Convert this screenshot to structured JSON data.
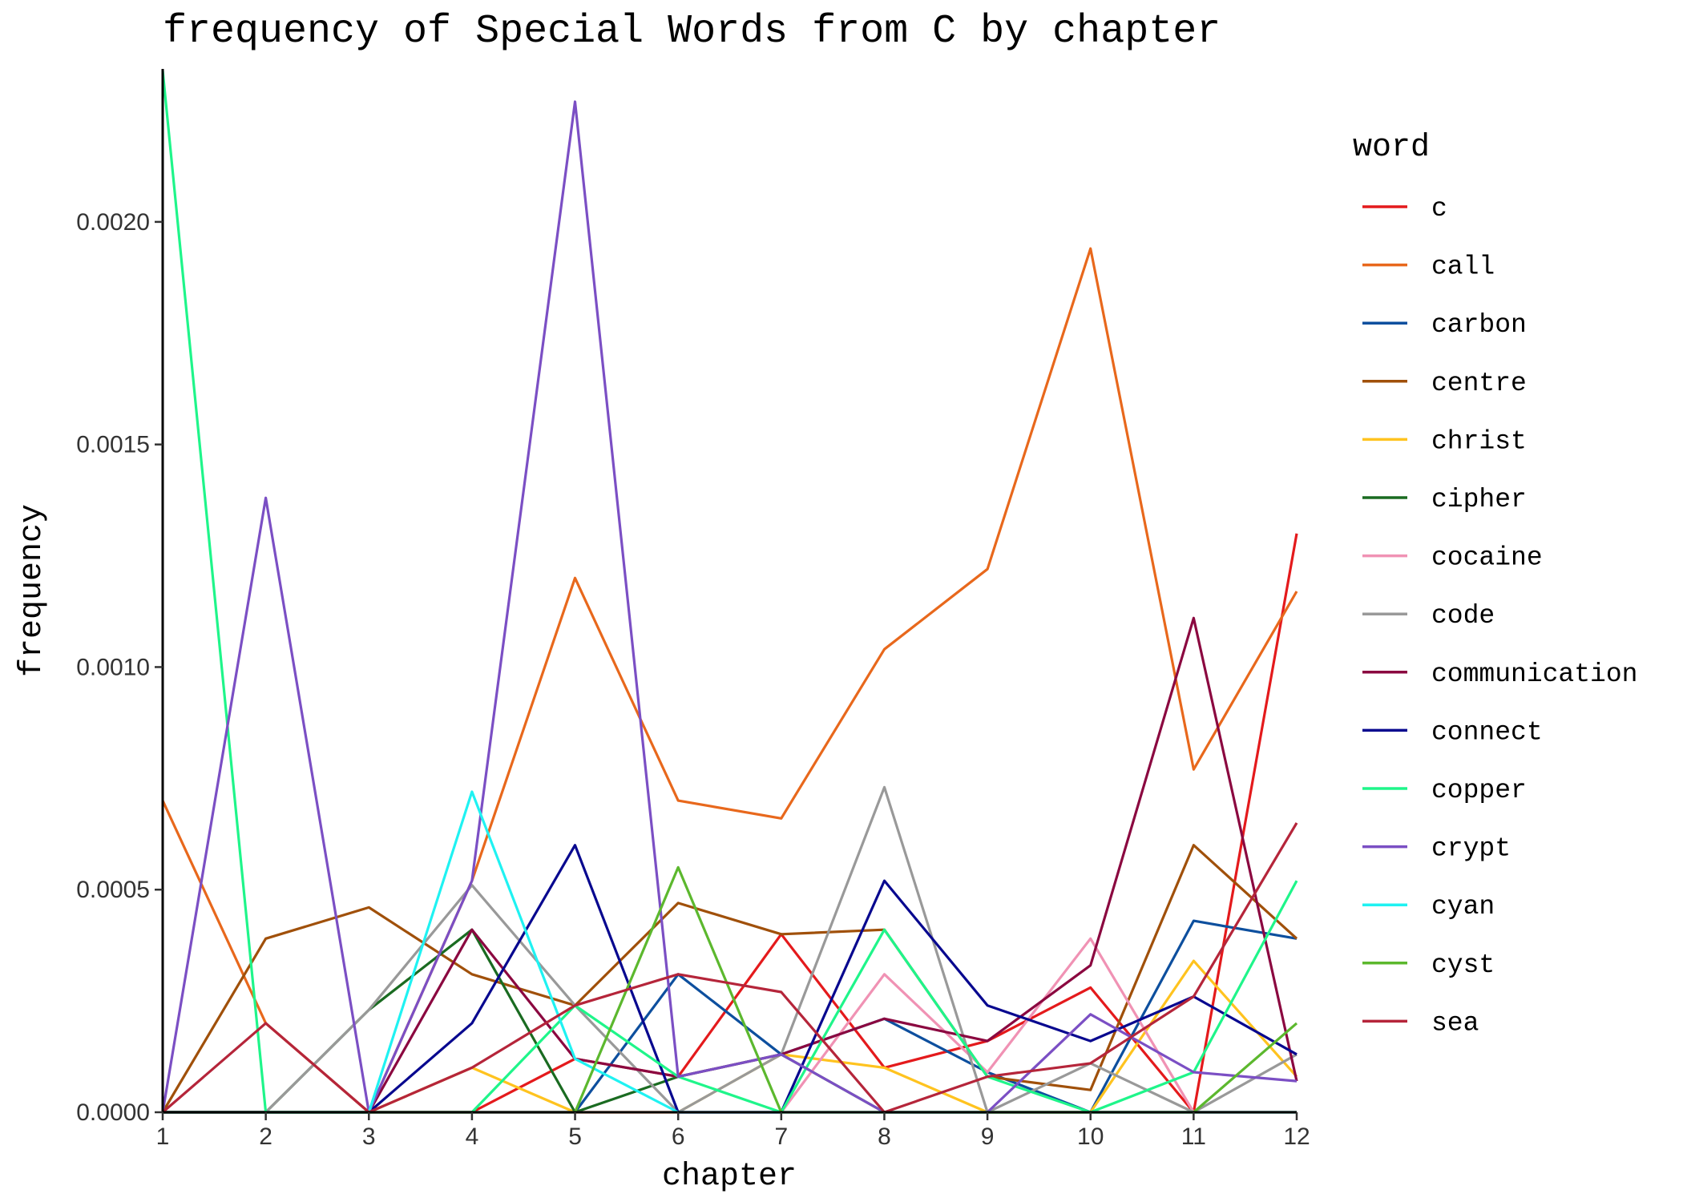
{
  "chart_data": {
    "type": "line",
    "title": "frequency of Special Words from C by chapter",
    "xlabel": "chapter",
    "ylabel": "frequency",
    "x": [
      1,
      2,
      3,
      4,
      5,
      6,
      7,
      8,
      9,
      10,
      11,
      12
    ],
    "xticks": [
      "1",
      "2",
      "3",
      "4",
      "5",
      "6",
      "7",
      "8",
      "9",
      "10",
      "11",
      "12"
    ],
    "yticks": [
      "0.0000",
      "0.0005",
      "0.0010",
      "0.0015",
      "0.0020"
    ],
    "xlim": [
      1,
      12
    ],
    "ylim": [
      0,
      0.00234
    ],
    "grid": false,
    "legend": {
      "title": "word",
      "position": "right"
    },
    "series": [
      {
        "name": "c",
        "color": "#e41a1c",
        "values": [
          0,
          0,
          0,
          0,
          0.00012,
          8e-05,
          0.0004,
          0.0001,
          0.00016,
          0.00028,
          0,
          0.0013
        ]
      },
      {
        "name": "call",
        "color": "#e8681c",
        "values": [
          0.0007,
          0.0002,
          0,
          0.00052,
          0.0012,
          0.0007,
          0.00066,
          0.00104,
          0.00122,
          0.00194,
          0.00077,
          0.00117
        ]
      },
      {
        "name": "carbon",
        "color": "#0d4f9e",
        "values": [
          0,
          0,
          0,
          0,
          0,
          0.00031,
          0.00013,
          0.00021,
          9e-05,
          0,
          0.00043,
          0.00039
        ]
      },
      {
        "name": "centre",
        "color": "#a0500a",
        "values": [
          0,
          0.00039,
          0.00046,
          0.00031,
          0.00024,
          0.00047,
          0.0004,
          0.00041,
          8e-05,
          5e-05,
          0.0006,
          0.00039
        ]
      },
      {
        "name": "christ",
        "color": "#ffc31f",
        "values": [
          0,
          0,
          0,
          0.0001,
          0,
          0,
          0.00013,
          0.0001,
          0,
          0,
          0.00034,
          8e-05
        ]
      },
      {
        "name": "cipher",
        "color": "#1a6b21",
        "values": [
          0,
          0,
          0.00023,
          0.00041,
          0,
          8e-05,
          0.00013,
          0,
          0,
          0,
          0,
          0
        ]
      },
      {
        "name": "cocaine",
        "color": "#f092b4",
        "values": [
          0,
          0,
          0,
          0,
          0,
          0,
          0,
          0.00031,
          9e-05,
          0.00039,
          0,
          0
        ]
      },
      {
        "name": "code",
        "color": "#999999",
        "values": [
          0,
          0,
          0.00023,
          0.00051,
          0.00024,
          0,
          0.00013,
          0.00073,
          0,
          0.00011,
          0,
          0.00013
        ]
      },
      {
        "name": "communication",
        "color": "#8b0840",
        "values": [
          0,
          0,
          0,
          0.00041,
          0.00012,
          8e-05,
          0.00013,
          0.00021,
          0.00016,
          0.00033,
          0.00111,
          7e-05
        ]
      },
      {
        "name": "connect",
        "color": "#08088f",
        "values": [
          0,
          0,
          0,
          0.0002,
          0.0006,
          0,
          0,
          0.00052,
          0.00024,
          0.00016,
          0.00026,
          0.00013
        ]
      },
      {
        "name": "copper",
        "color": "#1ff58a",
        "values": [
          0.00234,
          0,
          0,
          0,
          0.00024,
          8e-05,
          0,
          0.00041,
          8e-05,
          0,
          9e-05,
          0.00052
        ]
      },
      {
        "name": "crypt",
        "color": "#7b4fc4",
        "values": [
          0,
          0.00138,
          0,
          0.00052,
          0.00227,
          8e-05,
          0.00013,
          0,
          0,
          0.00022,
          9e-05,
          7e-05
        ]
      },
      {
        "name": "cyan",
        "color": "#1ff2f2",
        "values": [
          0,
          0,
          0,
          0.00072,
          0.00012,
          0,
          0,
          0,
          0,
          0,
          0,
          0
        ]
      },
      {
        "name": "cyst",
        "color": "#5cb82e",
        "values": [
          0,
          0,
          0,
          0,
          0,
          0.00055,
          0,
          0,
          0,
          0,
          0,
          0.0002
        ]
      },
      {
        "name": "sea",
        "color": "#b5253a",
        "values": [
          0,
          0.0002,
          0,
          0.0001,
          0.00024,
          0.00031,
          0.00027,
          0,
          8e-05,
          0.00011,
          0.00026,
          0.00065
        ]
      }
    ]
  }
}
